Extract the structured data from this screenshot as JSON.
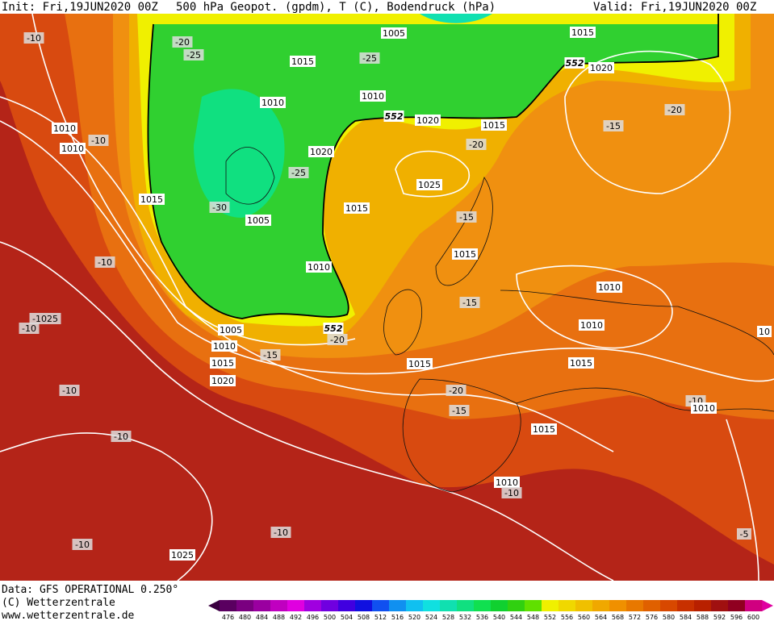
{
  "header": {
    "init": "Init: Fri,19JUN2020 00Z",
    "title": "500 hPa Geopot. (gpdm), T (C), Bodendruck (hPa)",
    "valid": "Valid: Fri,19JUN2020 00Z"
  },
  "footer": {
    "source": "Data: GFS OPERATIONAL 0.250°",
    "copyright": "(C) Wetterzentrale",
    "url": "www.wetterzentrale.de"
  },
  "colorbar": {
    "ticks": [
      476,
      480,
      484,
      488,
      492,
      496,
      500,
      504,
      508,
      512,
      516,
      520,
      524,
      528,
      532,
      536,
      540,
      544,
      548,
      552,
      556,
      560,
      564,
      568,
      572,
      576,
      580,
      584,
      588,
      592,
      596,
      600
    ],
    "colors": [
      "#5a0060",
      "#7a0080",
      "#9a00a0",
      "#c000c0",
      "#e000e0",
      "#a000e0",
      "#7000e0",
      "#4000e0",
      "#1010e0",
      "#1050f0",
      "#1090f0",
      "#10c0f0",
      "#10e0e0",
      "#10e0b0",
      "#10e080",
      "#10e050",
      "#10d030",
      "#30d010",
      "#60e000",
      "#f0f000",
      "#f0d800",
      "#f0c000",
      "#f0a800",
      "#f09000",
      "#e87800",
      "#e06000",
      "#d84800",
      "#c83000",
      "#b82000",
      "#a01010",
      "#900020",
      "#d00080"
    ]
  },
  "labels": [
    "1005",
    "1015",
    "1020",
    "552",
    "1015",
    "-25",
    "-20",
    "-25",
    "-10",
    "1010",
    "1010",
    "552",
    "1020",
    "1015",
    "-20",
    "-20",
    "-15",
    "1010",
    "1010",
    "-10",
    "1020",
    "-25",
    "1025",
    "1015",
    "-30",
    "1005",
    "1015",
    "-15",
    "1015",
    "-10",
    "1010",
    "1010",
    "-15",
    "-1025",
    "-10",
    "1005",
    "552",
    "-20",
    "1010",
    "1010",
    "-15",
    "1015",
    "1015",
    "1015",
    "1020",
    "-20",
    "-10",
    "-15",
    "-10",
    "1010",
    "1015",
    "-10",
    "1010",
    "-10",
    "-10",
    "-5",
    "-10",
    "1025",
    "10"
  ]
}
